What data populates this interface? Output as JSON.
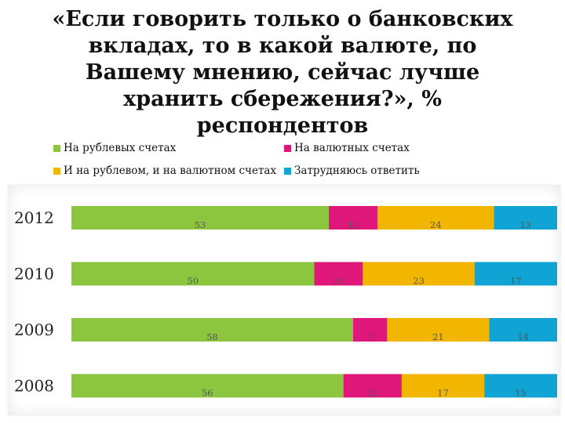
{
  "chart_data": {
    "type": "bar",
    "orientation": "horizontal",
    "stacked": true,
    "title": "«Если говорить только о банковских\nвкладах, то в какой валюте, по\nВашему мнению, сейчас лучше\nхранить сбережения?», %\nреспондентов",
    "categories": [
      "2012",
      "2010",
      "2009",
      "2008"
    ],
    "series": [
      {
        "name": "На рублевых счетах",
        "color": "#8cc63f",
        "values": [
          53,
          50,
          58,
          56
        ]
      },
      {
        "name": "На валютных счетах",
        "color": "#e0177a",
        "values": [
          10,
          10,
          7,
          12
        ]
      },
      {
        "name": "И на рублевом, и на валютном счетах",
        "color": "#f2b500",
        "values": [
          24,
          23,
          21,
          17
        ]
      },
      {
        "name": "Затрудняюсь ответить",
        "color": "#0fa4d4",
        "values": [
          13,
          17,
          14,
          15
        ]
      }
    ],
    "xlim": [
      0,
      100
    ],
    "legend": "top",
    "grid": false,
    "data_labels": true
  }
}
